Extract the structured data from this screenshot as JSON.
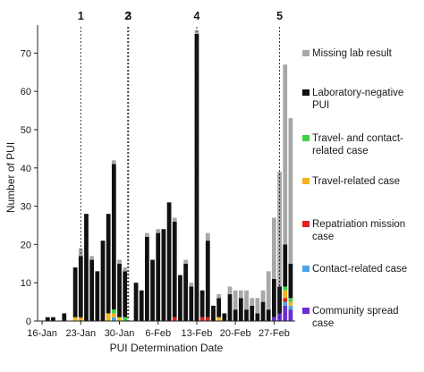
{
  "chart_data": {
    "type": "bar",
    "stacked": true,
    "title": "",
    "xlabel": "PUI Determination Date",
    "ylabel": "Number of PUI",
    "ylim": [
      0,
      75
    ],
    "yticks": [
      0,
      10,
      20,
      30,
      40,
      50,
      60,
      70
    ],
    "xtick_labels": [
      {
        "day": 0,
        "label": "16-Jan"
      },
      {
        "day": 7,
        "label": "23-Jan"
      },
      {
        "day": 14,
        "label": "30-Jan"
      },
      {
        "day": 21,
        "label": "6-Feb"
      },
      {
        "day": 28,
        "label": "13-Feb"
      },
      {
        "day": 35,
        "label": "20-Feb"
      },
      {
        "day": 42,
        "label": "27-Feb"
      }
    ],
    "categories": [
      "16-Jan",
      "17-Jan",
      "18-Jan",
      "19-Jan",
      "20-Jan",
      "21-Jan",
      "22-Jan",
      "23-Jan",
      "24-Jan",
      "25-Jan",
      "26-Jan",
      "27-Jan",
      "28-Jan",
      "29-Jan",
      "30-Jan",
      "31-Jan",
      "1-Feb",
      "2-Feb",
      "3-Feb",
      "4-Feb",
      "5-Feb",
      "6-Feb",
      "7-Feb",
      "8-Feb",
      "9-Feb",
      "10-Feb",
      "11-Feb",
      "12-Feb",
      "13-Feb",
      "14-Feb",
      "15-Feb",
      "16-Feb",
      "17-Feb",
      "18-Feb",
      "19-Feb",
      "20-Feb",
      "21-Feb",
      "22-Feb",
      "23-Feb",
      "24-Feb",
      "25-Feb",
      "26-Feb",
      "27-Feb",
      "28-Feb",
      "29-Feb",
      "1-Mar"
    ],
    "series": [
      {
        "name": "Community spread case",
        "color": "#6a2fd0",
        "values": [
          0,
          0,
          0,
          0,
          0,
          0,
          0,
          0,
          0,
          0,
          0,
          0,
          0,
          0,
          0,
          0,
          0,
          0,
          0,
          0,
          0,
          0,
          0,
          0,
          0,
          0,
          0,
          0,
          0,
          0,
          0,
          0,
          0,
          0,
          0,
          0,
          0,
          0,
          0,
          0,
          0,
          0,
          1,
          2,
          4,
          3
        ]
      },
      {
        "name": "Contact-related case",
        "color": "#4da3e8",
        "values": [
          0,
          0,
          0,
          0,
          0,
          0,
          0,
          0,
          0,
          0,
          0,
          0,
          0,
          1,
          0,
          0,
          0,
          0,
          0,
          0,
          0,
          0,
          0,
          0,
          0,
          0,
          0,
          0,
          0,
          0,
          0,
          0,
          0,
          0,
          0,
          0,
          0,
          0,
          0,
          0,
          0,
          0,
          0,
          0,
          1,
          1
        ]
      },
      {
        "name": "Repatriation mission case",
        "color": "#e0201c",
        "values": [
          0,
          0,
          0,
          0,
          0,
          0,
          0,
          0,
          0,
          0,
          0,
          0,
          0,
          0,
          0,
          0,
          0,
          0,
          0,
          0,
          0,
          0,
          0,
          0,
          1,
          0,
          0,
          0,
          0,
          1,
          1,
          0,
          0,
          0,
          0,
          0,
          0,
          0,
          0,
          0,
          0,
          0,
          0,
          0,
          1,
          0
        ]
      },
      {
        "name": "Travel-related case",
        "color": "#f5b21c",
        "values": [
          0,
          0,
          0,
          0,
          0,
          0,
          1,
          1,
          0,
          0,
          0,
          0,
          2,
          1,
          1,
          0,
          0,
          0,
          0,
          0,
          0,
          0,
          0,
          0,
          0,
          0,
          0,
          0,
          0,
          0,
          0,
          0,
          1,
          0,
          0,
          0,
          0,
          0,
          0,
          0,
          0,
          0,
          0,
          0,
          2,
          1
        ]
      },
      {
        "name": "Travel- and contact-related case",
        "color": "#3fd24a",
        "values": [
          0,
          0,
          0,
          0,
          0,
          0,
          0,
          0,
          0,
          0,
          0,
          0,
          0,
          1,
          0,
          1,
          0,
          0,
          0,
          0,
          0,
          0,
          0,
          0,
          0,
          0,
          0,
          0,
          0,
          0,
          0,
          0,
          0,
          0,
          0,
          0,
          0,
          0,
          0,
          0,
          0,
          0,
          0,
          0,
          1,
          1
        ]
      },
      {
        "name": "Laboratory-negative PUI",
        "color": "#111111",
        "values": [
          0,
          1,
          1,
          0,
          2,
          0,
          13,
          16,
          28,
          16,
          13,
          21,
          26,
          38,
          14,
          12,
          0,
          10,
          8,
          22,
          16,
          23,
          24,
          31,
          25,
          12,
          15,
          9,
          75,
          7,
          20,
          4,
          5,
          2,
          7,
          3,
          6,
          3,
          4,
          2,
          5,
          3,
          10,
          7,
          11,
          9
        ]
      },
      {
        "name": "Missing lab result",
        "color": "#a8a8a8",
        "values": [
          0,
          0,
          0,
          0,
          0,
          0,
          0,
          2,
          0,
          1,
          0,
          0,
          0,
          1,
          1,
          1,
          0,
          0,
          0,
          1,
          0,
          1,
          0,
          0,
          1,
          0,
          1,
          1,
          1,
          0,
          2,
          0,
          1,
          0,
          2,
          5,
          2,
          5,
          2,
          4,
          3,
          10,
          16,
          30,
          47,
          38
        ]
      }
    ],
    "legend_position": "right",
    "vertical_markers": [
      {
        "label": "1",
        "day": 7
      },
      {
        "label": "2",
        "day": 15
      },
      {
        "label": "3",
        "day": 16
      },
      {
        "label": "4",
        "day": 28
      },
      {
        "label": "5",
        "day": 43
      }
    ],
    "grid": false
  }
}
